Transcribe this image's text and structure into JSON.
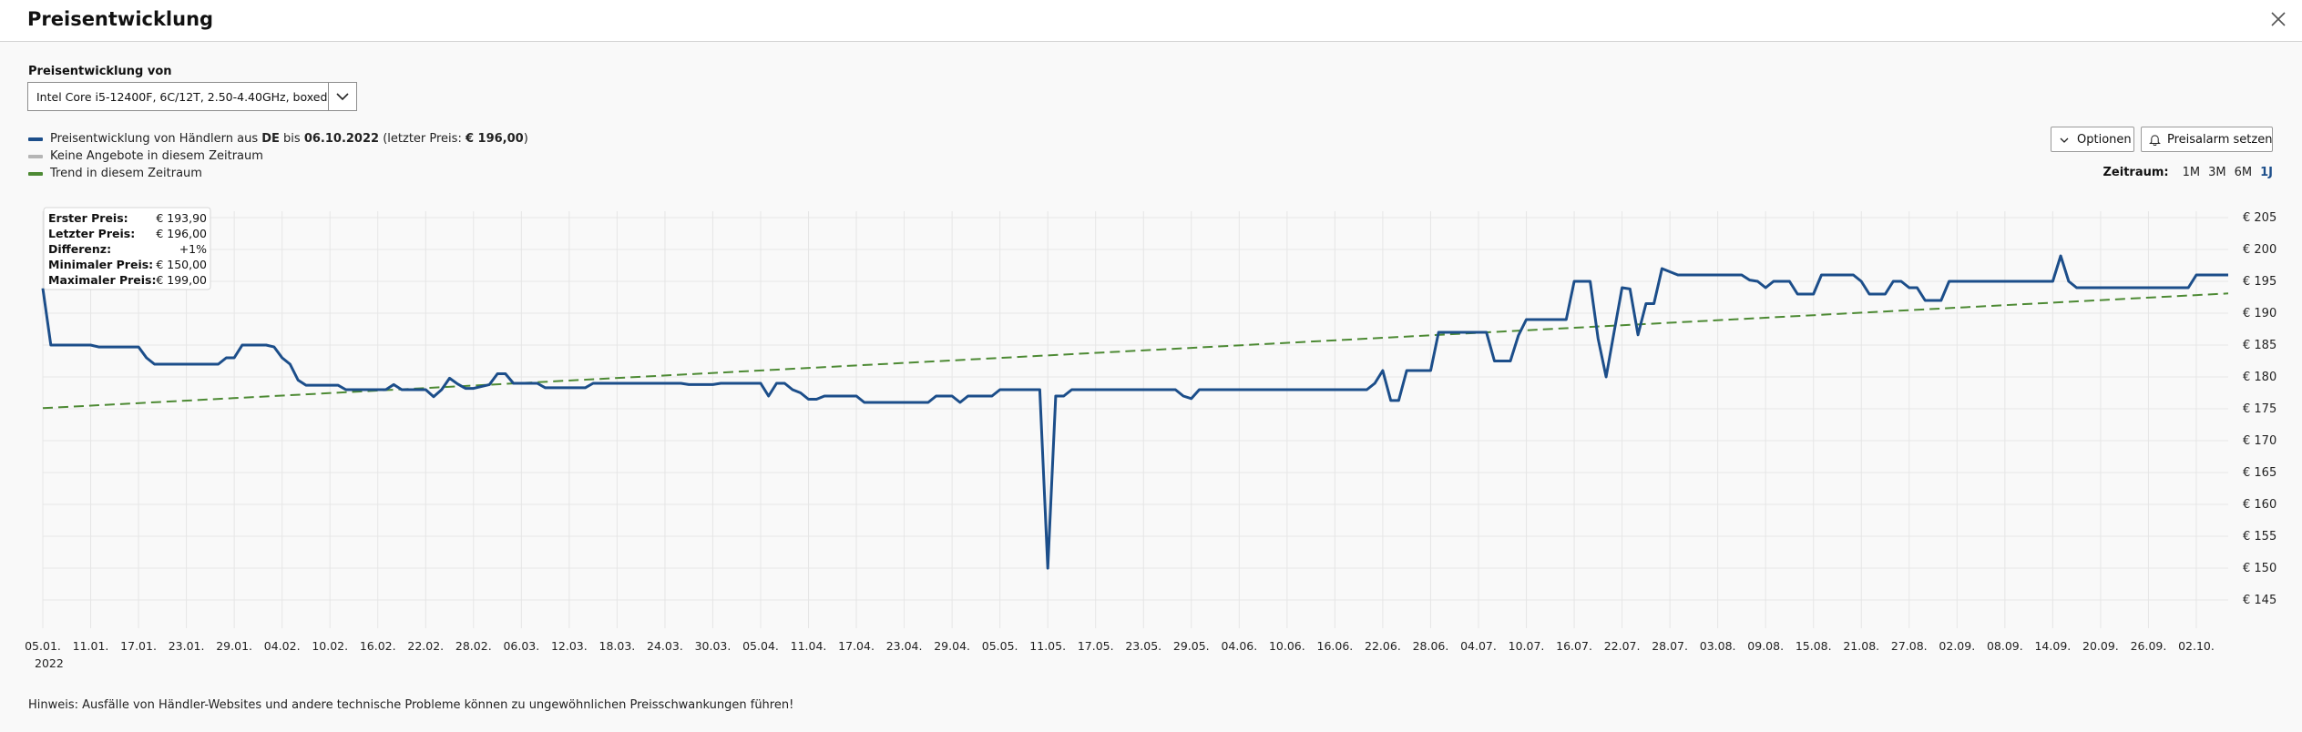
{
  "dialog": {
    "title": "Preisentwicklung"
  },
  "selector": {
    "label": "Preisentwicklung von",
    "value": "Intel Core i5-12400F, 6C/12T, 2.50-4.40GHz, boxed"
  },
  "legend": {
    "price_prefix": "Preisentwicklung von Händlern aus ",
    "country": "DE",
    "until_text": " bis ",
    "date": "06.10.2022",
    "last_price_prefix": " (letzter Preis: ",
    "last_price": "€ 196,00",
    "last_price_suffix": ")",
    "no_offers": "Keine Angebote in diesem Zeitraum",
    "trend": "Trend in diesem Zeitraum"
  },
  "buttons": {
    "options": "Optionen",
    "price_alarm": "Preisalarm setzen"
  },
  "range": {
    "label": "Zeitraum:",
    "options": [
      "1M",
      "3M",
      "6M",
      "1J"
    ],
    "selected": "1J"
  },
  "stats": [
    {
      "label": "Erster Preis:",
      "value": "€ 193,90"
    },
    {
      "label": "Letzter Preis:",
      "value": "€ 196,00"
    },
    {
      "label": "Differenz:",
      "value": "+1%"
    },
    {
      "label": "Minimaler Preis:",
      "value": "€ 150,00"
    },
    {
      "label": "Maximaler Preis:",
      "value": "€ 199,00"
    }
  ],
  "note": "Hinweis: Ausfälle von Händler-Websites und andere technische Probleme können zu ungewöhnlichen Preisschwankungen führen!",
  "colors": {
    "price_line": "#1c4e8a",
    "trend_line": "#4d8a34",
    "no_offers": "#b5b5b5",
    "active_range": "#1c4e8a"
  },
  "chart_data": {
    "type": "line",
    "title": "",
    "x_start": "2022-01-05",
    "x_end": "2022-10-06",
    "year_label": "2022",
    "xticks": [
      "05.01.",
      "11.01.",
      "17.01.",
      "23.01.",
      "29.01.",
      "04.02.",
      "10.02.",
      "16.02.",
      "22.02.",
      "28.02.",
      "06.03.",
      "12.03.",
      "18.03.",
      "24.03.",
      "30.03.",
      "05.04.",
      "11.04.",
      "17.04.",
      "23.04.",
      "29.04.",
      "05.05.",
      "11.05.",
      "17.05.",
      "23.05.",
      "29.05.",
      "04.06.",
      "10.06.",
      "16.06.",
      "22.06.",
      "28.06.",
      "04.07.",
      "10.07.",
      "16.07.",
      "22.07.",
      "28.07.",
      "03.08.",
      "09.08.",
      "15.08.",
      "21.08.",
      "27.08.",
      "02.09.",
      "08.09.",
      "14.09.",
      "20.09.",
      "26.09.",
      "02.10."
    ],
    "yticks": [
      145,
      150,
      155,
      160,
      165,
      170,
      175,
      180,
      185,
      190,
      195,
      200,
      205
    ],
    "ytick_prefix": "€ ",
    "ylim": [
      142,
      206
    ],
    "grid": true,
    "series": [
      {
        "points": [
          [
            "2022-01-05",
            193.9
          ],
          [
            "2022-01-06",
            185
          ],
          [
            "2022-01-11",
            185
          ],
          [
            "2022-01-12",
            184.7
          ],
          [
            "2022-01-17",
            184.7
          ],
          [
            "2022-01-18",
            183
          ],
          [
            "2022-01-19",
            182
          ],
          [
            "2022-01-27",
            182
          ],
          [
            "2022-01-28",
            183
          ],
          [
            "2022-01-29",
            183
          ],
          [
            "2022-01-30",
            185
          ],
          [
            "2022-02-02",
            185
          ],
          [
            "2022-02-03",
            184.7
          ],
          [
            "2022-02-04",
            183
          ],
          [
            "2022-02-05",
            182
          ],
          [
            "2022-02-06",
            179.5
          ],
          [
            "2022-02-07",
            178.7
          ],
          [
            "2022-02-11",
            178.7
          ],
          [
            "2022-02-12",
            178
          ],
          [
            "2022-02-17",
            178
          ],
          [
            "2022-02-18",
            178.8
          ],
          [
            "2022-02-19",
            178
          ],
          [
            "2022-02-21",
            178
          ],
          [
            "2022-02-22",
            178
          ],
          [
            "2022-02-23",
            176.9
          ],
          [
            "2022-02-24",
            178
          ],
          [
            "2022-02-25",
            179.8
          ],
          [
            "2022-02-26",
            178.9
          ],
          [
            "2022-02-27",
            178.2
          ],
          [
            "2022-02-28",
            178.2
          ],
          [
            "2022-03-02",
            178.8
          ],
          [
            "2022-03-03",
            180.5
          ],
          [
            "2022-03-04",
            180.5
          ],
          [
            "2022-03-05",
            179
          ],
          [
            "2022-03-08",
            179
          ],
          [
            "2022-03-09",
            178.3
          ],
          [
            "2022-03-14",
            178.3
          ],
          [
            "2022-03-15",
            179
          ],
          [
            "2022-03-26",
            179
          ],
          [
            "2022-03-27",
            178.8
          ],
          [
            "2022-03-30",
            178.8
          ],
          [
            "2022-03-31",
            179
          ],
          [
            "2022-04-05",
            179
          ],
          [
            "2022-04-06",
            177
          ],
          [
            "2022-04-07",
            179
          ],
          [
            "2022-04-08",
            179
          ],
          [
            "2022-04-09",
            178
          ],
          [
            "2022-04-10",
            177.5
          ],
          [
            "2022-04-11",
            176.5
          ],
          [
            "2022-04-12",
            176.5
          ],
          [
            "2022-04-13",
            177
          ],
          [
            "2022-04-17",
            177
          ],
          [
            "2022-04-18",
            176
          ],
          [
            "2022-04-26",
            176
          ],
          [
            "2022-04-27",
            177
          ],
          [
            "2022-04-29",
            177
          ],
          [
            "2022-04-30",
            176
          ],
          [
            "2022-05-01",
            177
          ],
          [
            "2022-05-04",
            177
          ],
          [
            "2022-05-05",
            178
          ],
          [
            "2022-05-10",
            178
          ],
          [
            "2022-05-11",
            150
          ],
          [
            "2022-05-12",
            177
          ],
          [
            "2022-05-13",
            177
          ],
          [
            "2022-05-14",
            178
          ],
          [
            "2022-05-27",
            178
          ],
          [
            "2022-05-28",
            177
          ],
          [
            "2022-05-29",
            176.6
          ],
          [
            "2022-05-30",
            178
          ],
          [
            "2022-06-20",
            178
          ],
          [
            "2022-06-21",
            179
          ],
          [
            "2022-06-22",
            181
          ],
          [
            "2022-06-23",
            176.3
          ],
          [
            "2022-06-24",
            176.3
          ],
          [
            "2022-06-25",
            181
          ],
          [
            "2022-06-28",
            181
          ],
          [
            "2022-06-29",
            187
          ],
          [
            "2022-07-05",
            187
          ],
          [
            "2022-07-06",
            182.5
          ],
          [
            "2022-07-08",
            182.5
          ],
          [
            "2022-07-09",
            186.5
          ],
          [
            "2022-07-10",
            189
          ],
          [
            "2022-07-15",
            189
          ],
          [
            "2022-07-16",
            195
          ],
          [
            "2022-07-18",
            195
          ],
          [
            "2022-07-19",
            186
          ],
          [
            "2022-07-20",
            180
          ],
          [
            "2022-07-21",
            187
          ],
          [
            "2022-07-22",
            194
          ],
          [
            "2022-07-23",
            193.8
          ],
          [
            "2022-07-24",
            186.6
          ],
          [
            "2022-07-25",
            191.5
          ],
          [
            "2022-07-26",
            191.5
          ],
          [
            "2022-07-27",
            197
          ],
          [
            "2022-07-28",
            196.5
          ],
          [
            "2022-07-29",
            196
          ],
          [
            "2022-08-06",
            196
          ],
          [
            "2022-08-07",
            195.2
          ],
          [
            "2022-08-08",
            195
          ],
          [
            "2022-08-09",
            194
          ],
          [
            "2022-08-10",
            195
          ],
          [
            "2022-08-12",
            195
          ],
          [
            "2022-08-13",
            193
          ],
          [
            "2022-08-15",
            193
          ],
          [
            "2022-08-16",
            196
          ],
          [
            "2022-08-20",
            196
          ],
          [
            "2022-08-21",
            195
          ],
          [
            "2022-08-22",
            193
          ],
          [
            "2022-08-24",
            193
          ],
          [
            "2022-08-25",
            195
          ],
          [
            "2022-08-26",
            195
          ],
          [
            "2022-08-27",
            194
          ],
          [
            "2022-08-28",
            194
          ],
          [
            "2022-08-29",
            192
          ],
          [
            "2022-08-31",
            192
          ],
          [
            "2022-09-01",
            195
          ],
          [
            "2022-09-14",
            195
          ],
          [
            "2022-09-15",
            199
          ],
          [
            "2022-09-16",
            195
          ],
          [
            "2022-09-17",
            194
          ],
          [
            "2022-10-01",
            194
          ],
          [
            "2022-10-02",
            196
          ],
          [
            "2022-10-06",
            196
          ]
        ]
      },
      {
        "style": "dashed",
        "points": [
          [
            "2022-01-05",
            175.1
          ],
          [
            "2022-10-06",
            193.1
          ]
        ]
      }
    ]
  }
}
